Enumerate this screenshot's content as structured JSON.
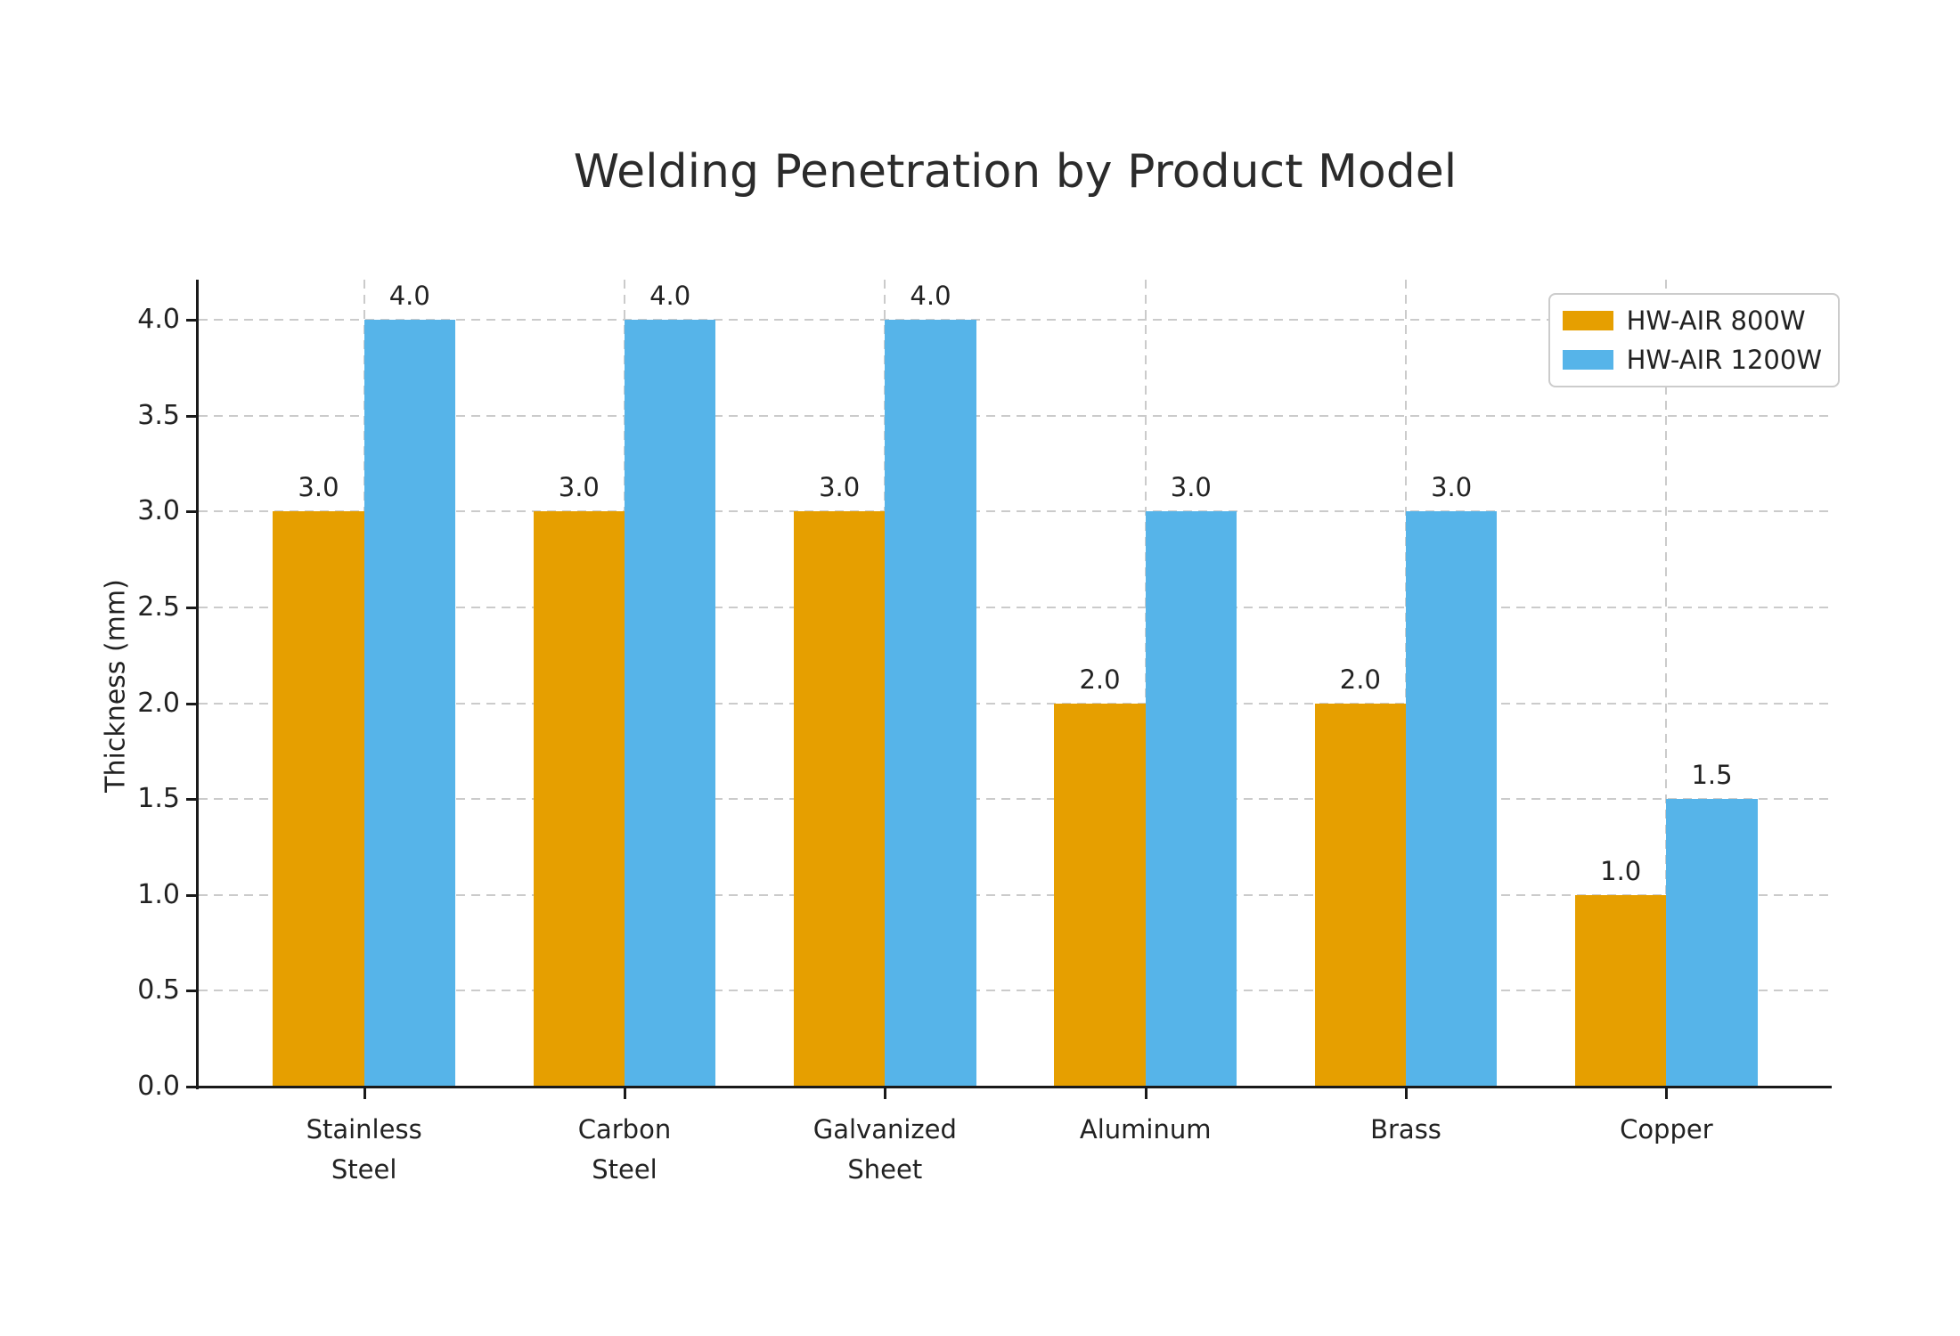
{
  "chart_data": {
    "type": "bar",
    "title": "Welding Penetration by Product Model",
    "xlabel": "",
    "ylabel": "Thickness (mm)",
    "categories": [
      "Stainless\nSteel",
      "Carbon\nSteel",
      "Galvanized\nSheet",
      "Aluminum",
      "Brass",
      "Copper"
    ],
    "series": [
      {
        "name": "HW-AIR 800W",
        "color": "#E69F00",
        "values": [
          3.0,
          3.0,
          3.0,
          2.0,
          2.0,
          1.0
        ]
      },
      {
        "name": "HW-AIR 1200W",
        "color": "#56B4E9",
        "values": [
          4.0,
          4.0,
          4.0,
          3.0,
          3.0,
          1.5
        ]
      }
    ],
    "value_label_decimals": 1,
    "ylim": [
      0,
      4.21
    ],
    "yticks": [
      0.0,
      0.5,
      1.0,
      1.5,
      2.0,
      2.5,
      3.0,
      3.5,
      4.0
    ],
    "grid": "both-dashed",
    "legend_position": "upper-right",
    "colors": {
      "grid": "#cbcbcb",
      "spine": "#1a1a1a",
      "text": "#222222",
      "background": "#ffffff"
    }
  }
}
